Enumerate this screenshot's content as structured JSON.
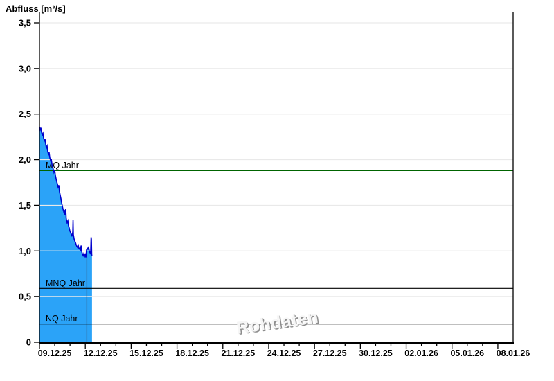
{
  "watermark": "Rohdaten",
  "colors": {
    "background": "#FFFFFF",
    "area_fill": "#2BA3F8",
    "area_stroke": "#0000CC",
    "grid": "#E9E9E9",
    "axis": "#000000",
    "tick_label": "#000000",
    "mq_green": "#006400",
    "ref_black": "#000000",
    "area_divider": "#3A5676",
    "watermark_gray": "#8D8D8D"
  },
  "chart_data": {
    "type": "area",
    "title": "Abfluss [m³/s]",
    "xlabel": "",
    "ylabel": "Abfluss [m³/s]",
    "ylim": [
      0,
      3.5
    ],
    "y_tick_step": 0.5,
    "y_tick_labels": [
      "0",
      "0,5",
      "1,0",
      "1,5",
      "2,0",
      "2,5",
      "3,0",
      "3,5"
    ],
    "x_tick_labels": [
      "09.12.25",
      "12.12.25",
      "15.12.25",
      "18.12.25",
      "21.12.25",
      "24.12.25",
      "27.12.25",
      "30.12.25",
      "02.01.26",
      "05.01.26",
      "08.01.26"
    ],
    "x_range_days": 31,
    "x_major_step_days": 3,
    "x_minor_step_days": 1,
    "grid": "horizontal light gray at each 0.5",
    "legend": "none",
    "watermark": "Rohdaten",
    "reference_lines": [
      {
        "label": "MQ Jahr",
        "value": 1.88,
        "color": "#006400"
      },
      {
        "label": "MNQ Jahr",
        "value": 0.59,
        "color": "#000000"
      },
      {
        "label": "NQ Jahr",
        "value": 0.2,
        "color": "#000000"
      }
    ],
    "area_divider_day": 3.1,
    "series": [
      {
        "name": "Abfluss (Rohdaten)",
        "unit": "m³/s",
        "x_unit": "days since 09.12.25",
        "points": [
          [
            0.0,
            2.36
          ],
          [
            0.05,
            2.33
          ],
          [
            0.09,
            2.35
          ],
          [
            0.14,
            2.3
          ],
          [
            0.18,
            2.27
          ],
          [
            0.23,
            2.29
          ],
          [
            0.27,
            2.24
          ],
          [
            0.32,
            2.21
          ],
          [
            0.36,
            2.23
          ],
          [
            0.41,
            2.17
          ],
          [
            0.45,
            2.13
          ],
          [
            0.5,
            2.15
          ],
          [
            0.54,
            2.09
          ],
          [
            0.59,
            2.06
          ],
          [
            0.63,
            2.08
          ],
          [
            0.68,
            2.02
          ],
          [
            0.73,
            1.99
          ],
          [
            0.77,
            2.01
          ],
          [
            0.82,
            1.95
          ],
          [
            0.86,
            1.92
          ],
          [
            0.91,
            1.89
          ],
          [
            0.95,
            1.86
          ],
          [
            1.0,
            1.88
          ],
          [
            1.04,
            1.83
          ],
          [
            1.09,
            1.79
          ],
          [
            1.13,
            1.76
          ],
          [
            1.18,
            1.73
          ],
          [
            1.22,
            1.7
          ],
          [
            1.27,
            1.72
          ],
          [
            1.31,
            1.65
          ],
          [
            1.36,
            1.61
          ],
          [
            1.41,
            1.57
          ],
          [
            1.45,
            1.53
          ],
          [
            1.5,
            1.49
          ],
          [
            1.54,
            1.46
          ],
          [
            1.59,
            1.43
          ],
          [
            1.63,
            1.45
          ],
          [
            1.68,
            1.39
          ],
          [
            1.72,
            1.46
          ],
          [
            1.75,
            1.36
          ],
          [
            1.77,
            1.34
          ],
          [
            1.81,
            1.31
          ],
          [
            1.86,
            1.33
          ],
          [
            1.9,
            1.28
          ],
          [
            1.95,
            1.25
          ],
          [
            1.99,
            1.22
          ],
          [
            2.04,
            1.2
          ],
          [
            2.09,
            1.18
          ],
          [
            2.13,
            1.16
          ],
          [
            2.18,
            1.21
          ],
          [
            2.2,
            1.34
          ],
          [
            2.22,
            1.18
          ],
          [
            2.27,
            1.13
          ],
          [
            2.31,
            1.11
          ],
          [
            2.36,
            1.09
          ],
          [
            2.4,
            1.07
          ],
          [
            2.45,
            1.05
          ],
          [
            2.49,
            1.04
          ],
          [
            2.54,
            1.06
          ],
          [
            2.58,
            1.03
          ],
          [
            2.63,
            1.02
          ],
          [
            2.67,
            1.04
          ],
          [
            2.72,
            1.0
          ],
          [
            2.74,
            1.06
          ],
          [
            2.77,
            0.99
          ],
          [
            2.81,
            0.97
          ],
          [
            2.86,
            0.95
          ],
          [
            2.9,
            0.97
          ],
          [
            2.95,
            0.94
          ],
          [
            2.99,
            0.96
          ],
          [
            3.04,
            0.93
          ],
          [
            3.08,
            1.01
          ],
          [
            3.13,
            1.03
          ],
          [
            3.17,
            1.02
          ],
          [
            3.22,
            1.04
          ],
          [
            3.26,
            1.0
          ],
          [
            3.31,
            0.98
          ],
          [
            3.35,
            0.97
          ],
          [
            3.38,
            1.15
          ],
          [
            3.4,
            1.13
          ],
          [
            3.42,
            0.96
          ],
          [
            3.44,
            0.95
          ]
        ]
      }
    ]
  }
}
